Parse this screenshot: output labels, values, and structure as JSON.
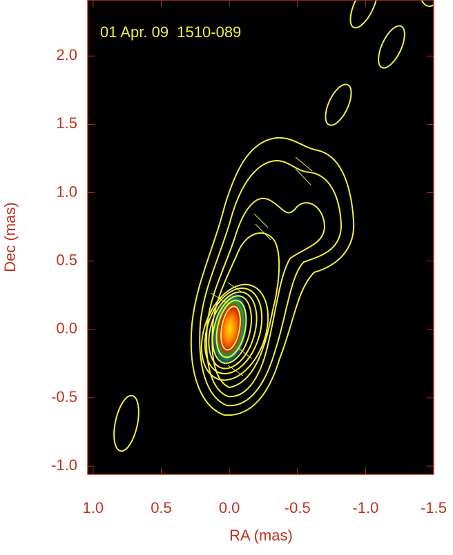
{
  "chart_data": {
    "type": "contour",
    "annotation": "01 Apr. 09  1510-089",
    "x_label": "RA (mas)",
    "y_label": "Dec (mas)",
    "xlim": [
      1.04,
      -1.5
    ],
    "xticks": [
      {
        "value": 1,
        "label": "1.0"
      },
      0.5,
      {
        "value": 0,
        "label": "0.0"
      },
      -0.5,
      {
        "value": -1,
        "label": "-1.0"
      },
      -1.5
    ],
    "ylim": [
      -1.06,
      2.41
    ],
    "yticks": [
      {
        "value": -1,
        "label": "-1.0"
      },
      -0.5,
      {
        "value": 0,
        "label": "0.0"
      },
      0.5,
      {
        "value": 1,
        "label": "1.0"
      },
      1.5,
      {
        "value": 2,
        "label": "2.0"
      }
    ],
    "contour_color": "#f0f040",
    "grid": false
  }
}
